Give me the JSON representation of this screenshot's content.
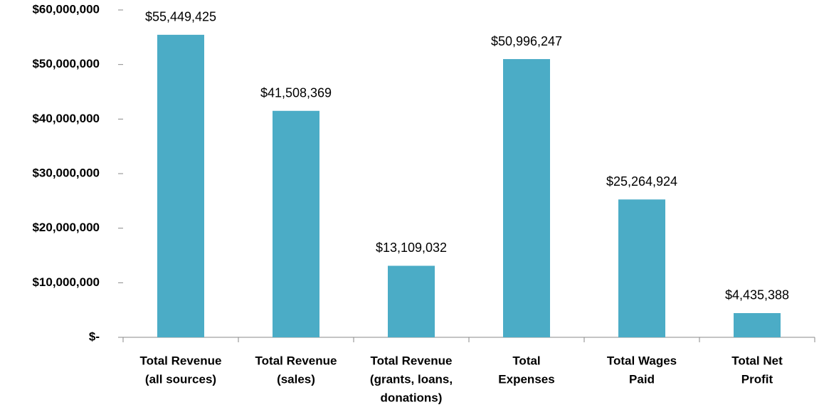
{
  "chart_data": {
    "type": "bar",
    "categories": [
      [
        "Total Revenue",
        "(all sources)"
      ],
      [
        "Total Revenue",
        "(sales)"
      ],
      [
        "Total Revenue",
        "(grants, loans,",
        "donations)"
      ],
      [
        "Total",
        "Expenses"
      ],
      [
        "Total Wages",
        "Paid"
      ],
      [
        "Total Net",
        "Profit"
      ]
    ],
    "values": [
      55449425,
      41508369,
      13109032,
      50996247,
      25264924,
      4435388
    ],
    "value_labels": [
      "$55,449,425",
      "$41,508,369",
      "$13,109,032",
      "$50,996,247",
      "$25,264,924",
      "$4,435,388"
    ],
    "color": "#4bacc6",
    "ylim": [
      0,
      60000000
    ],
    "yticks": [
      {
        "value": 0,
        "label": "$-"
      },
      {
        "value": 10000000,
        "label": "$10,000,000"
      },
      {
        "value": 20000000,
        "label": "$20,000,000"
      },
      {
        "value": 30000000,
        "label": "$30,000,000"
      },
      {
        "value": 40000000,
        "label": "$40,000,000"
      },
      {
        "value": 50000000,
        "label": "$50,000,000"
      },
      {
        "value": 60000000,
        "label": "$60,000,000"
      }
    ],
    "grid": false
  }
}
